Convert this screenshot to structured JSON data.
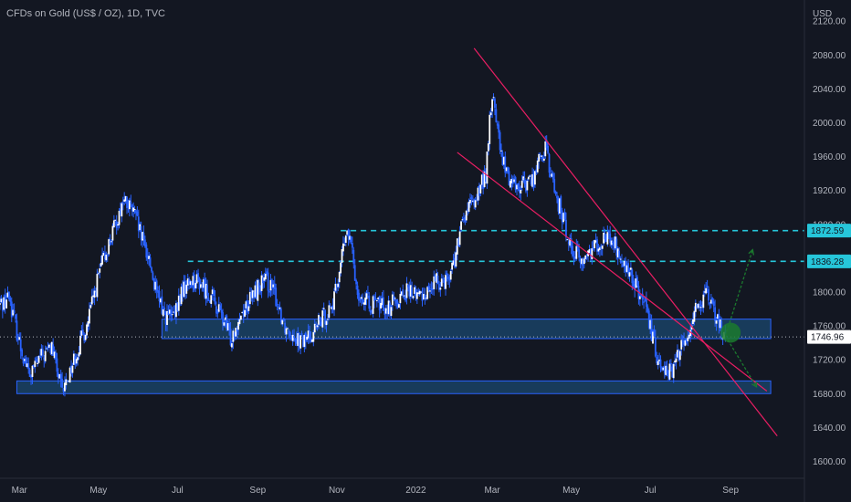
{
  "header": {
    "title": "CFDs on Gold (US$ / OZ), 1D, TVC"
  },
  "colors": {
    "background": "#131722",
    "candle": "#2962ff",
    "candle_up": "#ffffff",
    "zone_fill": "#1e5a8a",
    "zone_border": "#2962ff",
    "channel": "#e91e63",
    "level_line": "#26c6da",
    "arrow": "#1b7a2e"
  },
  "chart_data": {
    "type": "candlestick",
    "title": "CFDs on Gold (US$ / OZ), 1D, TVC",
    "currency_label": "USD",
    "y_axis_ticks": [
      "2120.00",
      "2080.00",
      "2040.00",
      "2000.00",
      "1960.00",
      "1920.00",
      "1880.00",
      "1840.00",
      "1800.00",
      "1760.00",
      "1720.00",
      "1680.00",
      "1640.00",
      "1600.00"
    ],
    "y_tick_values": [
      2120,
      2080,
      2040,
      2000,
      1960,
      1920,
      1880,
      1840,
      1800,
      1760,
      1720,
      1680,
      1640,
      1600
    ],
    "ylim": [
      1580,
      2145
    ],
    "x_axis_ticks": [
      "Mar",
      "May",
      "Jul",
      "Sep",
      "Nov",
      "2022",
      "Mar",
      "May",
      "Jul",
      "Sep"
    ],
    "x_tick_days": [
      0,
      61,
      122,
      184,
      245,
      306,
      365,
      426,
      487,
      549
    ],
    "xlim_days": [
      -15,
      606
    ],
    "price_labels": [
      {
        "text": "1872.59",
        "value": 1872.59,
        "style": "level"
      },
      {
        "text": "1836.28",
        "value": 1836.28,
        "style": "level"
      },
      {
        "text": "1746.96",
        "value": 1746.96,
        "style": "current"
      }
    ],
    "levels": [
      {
        "value": 1872.59,
        "from_day": 248
      },
      {
        "value": 1836.28,
        "from_day": 130
      }
    ],
    "zones": [
      {
        "from_day": 110,
        "to_day": 580,
        "low": 1745,
        "high": 1768
      },
      {
        "from_day": -2,
        "to_day": 580,
        "low": 1680,
        "high": 1695
      }
    ],
    "channel_lines": [
      {
        "start": [
          351,
          2088
        ],
        "end": [
          585,
          1630
        ]
      },
      {
        "start": [
          338,
          1965
        ],
        "end": [
          577,
          1683
        ]
      }
    ],
    "projection_arrows": [
      {
        "start": [
          545,
          1748
        ],
        "end": [
          566,
          1850
        ]
      },
      {
        "start": [
          545,
          1748
        ],
        "end": [
          569,
          1688
        ]
      }
    ],
    "highlight_circle": {
      "day": 549,
      "value": 1752
    },
    "current_price": 1746.96,
    "path": [
      [
        -15,
        1785
      ],
      [
        -8,
        1795
      ],
      [
        0,
        1740
      ],
      [
        8,
        1700
      ],
      [
        15,
        1720
      ],
      [
        25,
        1735
      ],
      [
        33,
        1680
      ],
      [
        42,
        1720
      ],
      [
        52,
        1760
      ],
      [
        62,
        1825
      ],
      [
        72,
        1870
      ],
      [
        80,
        1908
      ],
      [
        88,
        1895
      ],
      [
        95,
        1860
      ],
      [
        100,
        1840
      ],
      [
        106,
        1795
      ],
      [
        113,
        1772
      ],
      [
        120,
        1770
      ],
      [
        125,
        1800
      ],
      [
        133,
        1815
      ],
      [
        140,
        1810
      ],
      [
        148,
        1795
      ],
      [
        153,
        1780
      ],
      [
        158,
        1765
      ],
      [
        163,
        1745
      ],
      [
        170,
        1772
      ],
      [
        178,
        1790
      ],
      [
        186,
        1810
      ],
      [
        192,
        1812
      ],
      [
        198,
        1793
      ],
      [
        205,
        1760
      ],
      [
        212,
        1752
      ],
      [
        218,
        1740
      ],
      [
        225,
        1750
      ],
      [
        230,
        1760
      ],
      [
        237,
        1775
      ],
      [
        243,
        1790
      ],
      [
        249,
        1845
      ],
      [
        253,
        1870
      ],
      [
        256,
        1855
      ],
      [
        260,
        1810
      ],
      [
        263,
        1795
      ],
      [
        268,
        1788
      ],
      [
        273,
        1785
      ],
      [
        280,
        1785
      ],
      [
        285,
        1782
      ],
      [
        290,
        1790
      ],
      [
        297,
        1800
      ],
      [
        303,
        1800
      ],
      [
        308,
        1795
      ],
      [
        314,
        1800
      ],
      [
        320,
        1810
      ],
      [
        326,
        1815
      ],
      [
        332,
        1820
      ],
      [
        337,
        1845
      ],
      [
        341,
        1875
      ],
      [
        345,
        1895
      ],
      [
        350,
        1905
      ],
      [
        355,
        1920
      ],
      [
        360,
        1940
      ],
      [
        363,
        2000
      ],
      [
        366,
        2035
      ],
      [
        369,
        1990
      ],
      [
        372,
        1960
      ],
      [
        376,
        1940
      ],
      [
        381,
        1930
      ],
      [
        386,
        1925
      ],
      [
        392,
        1930
      ],
      [
        397,
        1935
      ],
      [
        402,
        1960
      ],
      [
        406,
        1970
      ],
      [
        410,
        1940
      ],
      [
        414,
        1915
      ],
      [
        419,
        1890
      ],
      [
        424,
        1860
      ],
      [
        430,
        1845
      ],
      [
        436,
        1835
      ],
      [
        442,
        1855
      ],
      [
        448,
        1860
      ],
      [
        454,
        1865
      ],
      [
        460,
        1855
      ],
      [
        466,
        1830
      ],
      [
        472,
        1820
      ],
      [
        478,
        1800
      ],
      [
        484,
        1775
      ],
      [
        489,
        1745
      ],
      [
        493,
        1720
      ],
      [
        497,
        1715
      ],
      [
        502,
        1705
      ],
      [
        505,
        1708
      ],
      [
        509,
        1730
      ],
      [
        514,
        1740
      ],
      [
        518,
        1760
      ],
      [
        522,
        1785
      ],
      [
        527,
        1790
      ],
      [
        531,
        1795
      ],
      [
        535,
        1780
      ],
      [
        539,
        1765
      ],
      [
        543,
        1752
      ],
      [
        546,
        1747
      ]
    ]
  }
}
